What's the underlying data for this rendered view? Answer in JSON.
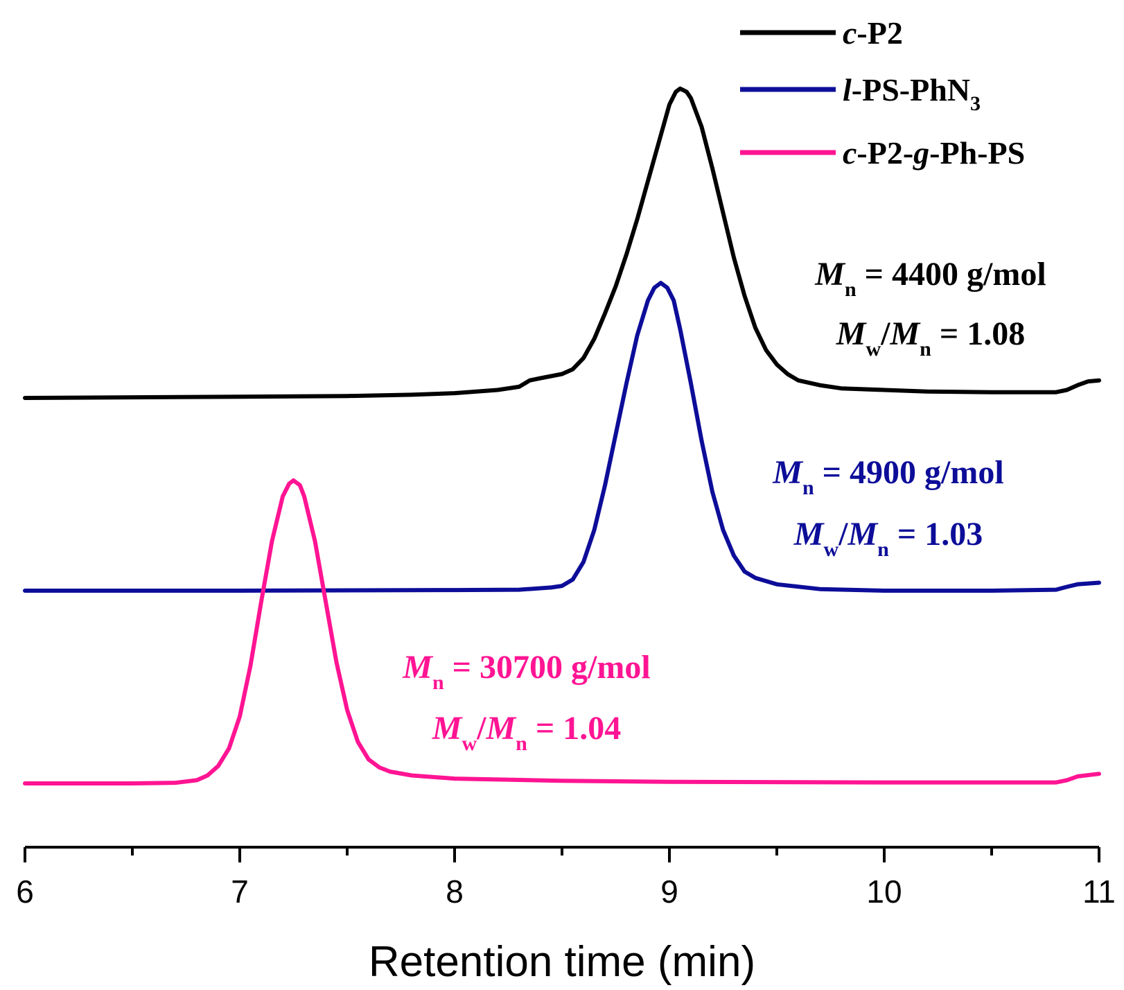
{
  "chart_data": {
    "type": "line",
    "title": "",
    "xlabel": "Retention time (min)",
    "ylabel": "",
    "xlim": [
      6,
      11
    ],
    "xticks": [
      6,
      7,
      8,
      9,
      10,
      11
    ],
    "xtick_labels": [
      "6",
      "7",
      "8",
      "9",
      "10",
      "11"
    ],
    "grid": false,
    "legend_position": "top-right",
    "series": [
      {
        "name": "c-P2",
        "legend": {
          "italic": "c",
          "rest": "-P2"
        },
        "color": "#000000",
        "offset": 1.0,
        "peak_x": 9.05,
        "points": [
          [
            6.0,
            0.0
          ],
          [
            6.5,
            0.002
          ],
          [
            7.0,
            0.004
          ],
          [
            7.5,
            0.006
          ],
          [
            7.8,
            0.01
          ],
          [
            8.0,
            0.015
          ],
          [
            8.2,
            0.025
          ],
          [
            8.3,
            0.035
          ],
          [
            8.35,
            0.055
          ],
          [
            8.4,
            0.062
          ],
          [
            8.5,
            0.075
          ],
          [
            8.55,
            0.09
          ],
          [
            8.6,
            0.125
          ],
          [
            8.65,
            0.185
          ],
          [
            8.7,
            0.265
          ],
          [
            8.75,
            0.35
          ],
          [
            8.8,
            0.45
          ],
          [
            8.85,
            0.56
          ],
          [
            8.9,
            0.68
          ],
          [
            8.95,
            0.8
          ],
          [
            9.0,
            0.92
          ],
          [
            9.03,
            0.96
          ],
          [
            9.05,
            0.97
          ],
          [
            9.08,
            0.96
          ],
          [
            9.1,
            0.94
          ],
          [
            9.15,
            0.85
          ],
          [
            9.2,
            0.72
          ],
          [
            9.25,
            0.58
          ],
          [
            9.3,
            0.44
          ],
          [
            9.35,
            0.32
          ],
          [
            9.4,
            0.22
          ],
          [
            9.45,
            0.15
          ],
          [
            9.5,
            0.105
          ],
          [
            9.55,
            0.075
          ],
          [
            9.6,
            0.055
          ],
          [
            9.7,
            0.04
          ],
          [
            9.8,
            0.03
          ],
          [
            10.0,
            0.025
          ],
          [
            10.2,
            0.02
          ],
          [
            10.5,
            0.018
          ],
          [
            10.8,
            0.018
          ],
          [
            10.85,
            0.025
          ],
          [
            10.9,
            0.04
          ],
          [
            10.95,
            0.052
          ],
          [
            11.0,
            0.055
          ]
        ]
      },
      {
        "name": "l-PS-PhN3",
        "legend": {
          "italic": "l",
          "rest": "-PS-PhN",
          "sub": "3"
        },
        "color": "#0d0d99",
        "offset": 0.5,
        "peak_x": 8.96,
        "points": [
          [
            6.0,
            0.0
          ],
          [
            7.0,
            0.0
          ],
          [
            8.0,
            0.002
          ],
          [
            8.3,
            0.003
          ],
          [
            8.45,
            0.01
          ],
          [
            8.5,
            0.015
          ],
          [
            8.55,
            0.035
          ],
          [
            8.6,
            0.09
          ],
          [
            8.65,
            0.19
          ],
          [
            8.7,
            0.33
          ],
          [
            8.75,
            0.49
          ],
          [
            8.8,
            0.65
          ],
          [
            8.85,
            0.8
          ],
          [
            8.9,
            0.91
          ],
          [
            8.93,
            0.95
          ],
          [
            8.96,
            0.965
          ],
          [
            8.99,
            0.95
          ],
          [
            9.02,
            0.91
          ],
          [
            9.05,
            0.82
          ],
          [
            9.1,
            0.65
          ],
          [
            9.15,
            0.47
          ],
          [
            9.2,
            0.31
          ],
          [
            9.25,
            0.19
          ],
          [
            9.3,
            0.11
          ],
          [
            9.35,
            0.06
          ],
          [
            9.4,
            0.04
          ],
          [
            9.5,
            0.02
          ],
          [
            9.7,
            0.005
          ],
          [
            10.0,
            0.0
          ],
          [
            10.5,
            0.0
          ],
          [
            10.8,
            0.003
          ],
          [
            10.85,
            0.012
          ],
          [
            10.9,
            0.02
          ],
          [
            11.0,
            0.025
          ]
        ]
      },
      {
        "name": "c-P2-g-Ph-PS",
        "legend": {
          "italic": "c",
          "rest": "-P2-",
          "italic2": "g",
          "rest2": "-Ph-PS"
        },
        "color": "#ff1493",
        "offset": 0.0,
        "peak_x": 7.25,
        "points": [
          [
            6.0,
            0.0
          ],
          [
            6.5,
            0.0
          ],
          [
            6.7,
            0.002
          ],
          [
            6.8,
            0.01
          ],
          [
            6.85,
            0.025
          ],
          [
            6.9,
            0.055
          ],
          [
            6.95,
            0.11
          ],
          [
            7.0,
            0.21
          ],
          [
            7.05,
            0.37
          ],
          [
            7.1,
            0.57
          ],
          [
            7.15,
            0.76
          ],
          [
            7.2,
            0.9
          ],
          [
            7.23,
            0.94
          ],
          [
            7.25,
            0.95
          ],
          [
            7.28,
            0.935
          ],
          [
            7.3,
            0.9
          ],
          [
            7.35,
            0.76
          ],
          [
            7.4,
            0.57
          ],
          [
            7.45,
            0.38
          ],
          [
            7.5,
            0.23
          ],
          [
            7.55,
            0.13
          ],
          [
            7.6,
            0.075
          ],
          [
            7.65,
            0.05
          ],
          [
            7.7,
            0.037
          ],
          [
            7.8,
            0.025
          ],
          [
            8.0,
            0.015
          ],
          [
            8.5,
            0.008
          ],
          [
            9.0,
            0.005
          ],
          [
            10.0,
            0.003
          ],
          [
            10.8,
            0.003
          ],
          [
            10.85,
            0.01
          ],
          [
            10.9,
            0.022
          ],
          [
            11.0,
            0.03
          ]
        ]
      }
    ],
    "annotations": [
      {
        "series": "c-P2",
        "color": "#000000",
        "mn_value": "4400 g/mol",
        "pdi_value": "1.08"
      },
      {
        "series": "l-PS-PhN3",
        "color": "#0d0d99",
        "mn_value": "4900 g/mol",
        "pdi_value": "1.03"
      },
      {
        "series": "c-P2-g-Ph-PS",
        "color": "#ff1493",
        "mn_value": "30700 g/mol",
        "pdi_value": "1.04"
      }
    ],
    "annotation_symbols": {
      "M": "M",
      "n": "n",
      "w": "w",
      "slash": "/",
      "eq": " = "
    }
  }
}
